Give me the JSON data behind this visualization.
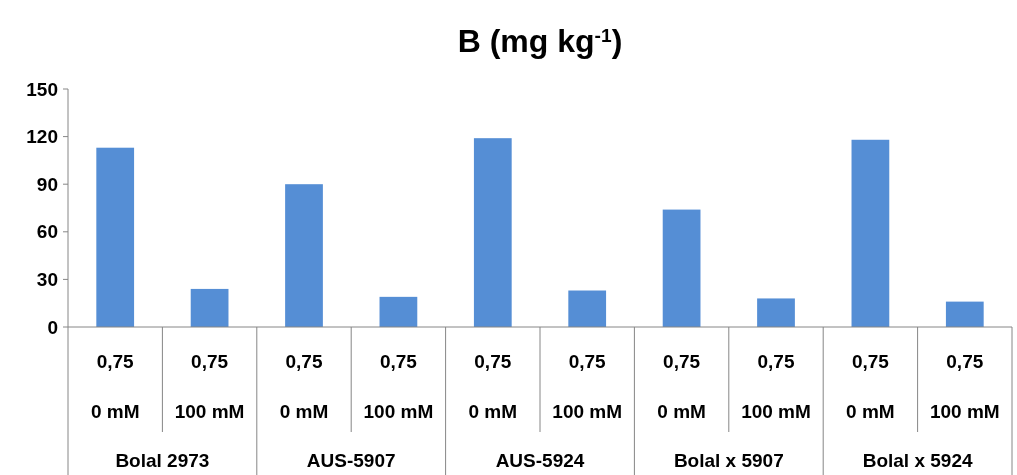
{
  "chart_data": {
    "type": "bar",
    "title": "B (mg kg$^{-1}$)",
    "categories": [
      "0,75\n0 mM",
      "0,75\n100 mM",
      "0,75\n0 mM",
      "0,75\n100 mM",
      "0,75\n0 mM",
      "0,75\n100 mM",
      "0,75\n0 mM",
      "0,75\n100 mM",
      "0,75\n0 mM",
      "0,75\n100 mM"
    ],
    "values": [
      113,
      24,
      90,
      19,
      119,
      23,
      74,
      18,
      118,
      16
    ],
    "color": "#558ed5",
    "annotations": [
      "Bolal 2973",
      "AUS-5907",
      "AUS-5924",
      "Bolal x 5907",
      "Bolal x 5924"
    ],
    "ylim": [
      0,
      150
    ],
    "yticks": [
      0,
      30,
      60,
      90,
      120,
      150
    ],
    "grid": false
  }
}
